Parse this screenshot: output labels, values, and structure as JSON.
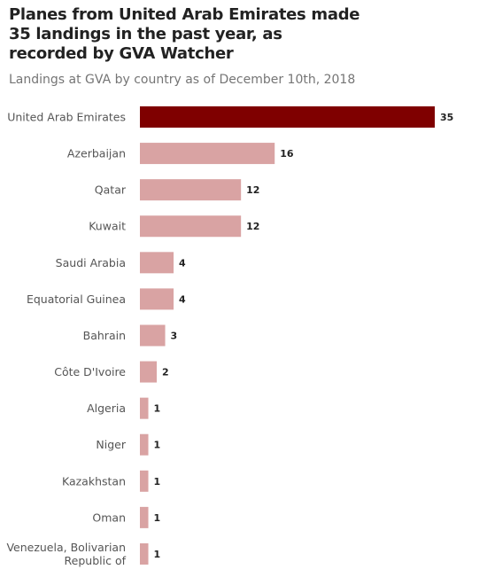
{
  "chart_data": {
    "type": "bar",
    "orientation": "horizontal",
    "title": "Planes from United Arab Emirates made 35 landings in the past year, as recorded by GVA Watcher",
    "subtitle": "Landings at GVA by country as of December 10th, 2018",
    "xlabel": "",
    "ylabel": "",
    "xlim": [
      0,
      35
    ],
    "grid": false,
    "legend": "none",
    "highlight_color": "#7f0000",
    "bar_color": "#d9a3a3",
    "categories": [
      "United Arab Emirates",
      "Azerbaijan",
      "Qatar",
      "Kuwait",
      "Saudi Arabia",
      "Equatorial Guinea",
      "Bahrain",
      "Côte D'Ivoire",
      "Algeria",
      "Niger",
      "Kazakhstan",
      "Oman",
      "Venezuela, Bolivarian Republic of"
    ],
    "values": [
      35,
      16,
      12,
      12,
      4,
      4,
      3,
      2,
      1,
      1,
      1,
      1,
      1
    ],
    "highlighted": [
      "United Arab Emirates"
    ]
  }
}
